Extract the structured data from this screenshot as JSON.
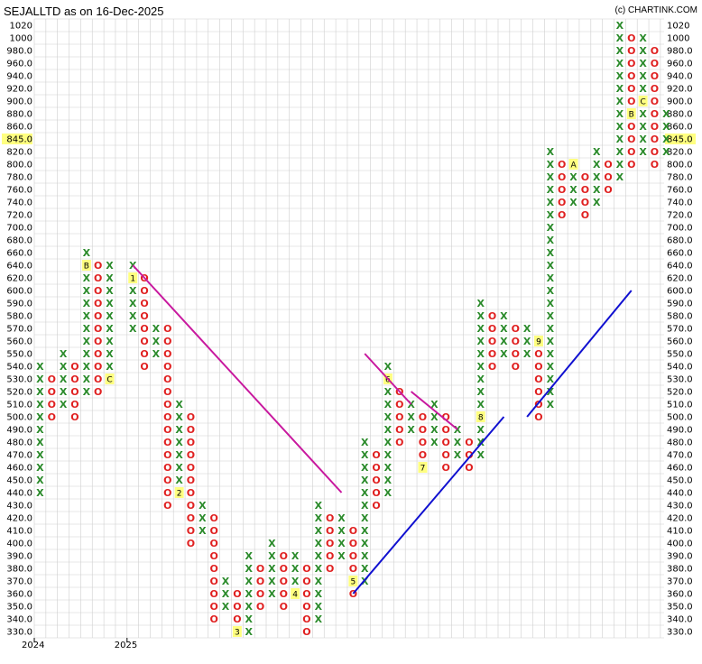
{
  "title": "SEJALLTD as on 16-Dec-2025",
  "credit": "(c) CHARTINK.COM",
  "current_price_label": "845.0",
  "colors": {
    "x": "#2a8a2a",
    "o": "#e02020",
    "downtrend": "#c8189e",
    "uptrend": "#1010d0",
    "grid": "#cfcfcf",
    "highlight": "#ffff80"
  },
  "chart_data": {
    "type": "point-and-figure",
    "symbol": "SEJALLTD",
    "y_ticks": [
      330,
      340,
      350,
      360,
      370,
      380,
      390,
      400,
      410,
      420,
      430,
      440,
      450,
      460,
      470,
      480,
      490,
      500,
      510,
      520,
      530,
      540,
      550,
      560,
      570,
      580,
      590,
      600,
      620,
      640,
      660,
      680,
      700,
      720,
      740,
      760,
      780,
      800,
      820,
      845,
      860,
      880,
      900,
      920,
      940,
      960,
      980,
      1000,
      1020
    ],
    "y_tick_labels": [
      "330.0",
      "340.0",
      "350.0",
      "360.0",
      "370.0",
      "380.0",
      "390.0",
      "400.0",
      "410.0",
      "420.0",
      "430.0",
      "440.0",
      "450.0",
      "460.0",
      "470.0",
      "480.0",
      "490.0",
      "500.0",
      "510.0",
      "520.0",
      "530.0",
      "540.0",
      "550.0",
      "560.0",
      "570.0",
      "580.0",
      "590.0",
      "600.0",
      "620.0",
      "640.0",
      "660.0",
      "680.0",
      "700.0",
      "720.0",
      "740.0",
      "760.0",
      "780.0",
      "800.0",
      "820.0",
      "845.0",
      "860.0",
      "880.0",
      "900.0",
      "920.0",
      "940.0",
      "960.0",
      "980.0",
      "1000",
      "1020"
    ],
    "x_year_labels": [
      {
        "label": "2024",
        "col": 0
      },
      {
        "label": "2025",
        "col": 8
      }
    ],
    "columns": [
      {
        "t": "X",
        "lo": 440,
        "hi": 540
      },
      {
        "t": "O",
        "lo": 500,
        "hi": 530
      },
      {
        "t": "X",
        "lo": 510,
        "hi": 550
      },
      {
        "t": "O",
        "lo": 500,
        "hi": 540
      },
      {
        "t": "X",
        "lo": 520,
        "hi": 660,
        "marks": {
          "640": "B"
        }
      },
      {
        "t": "O",
        "lo": 520,
        "hi": 640
      },
      {
        "t": "X",
        "lo": 530,
        "hi": 640,
        "marks": {
          "530": "C"
        }
      },
      {
        "t": "O",
        "lo": 560,
        "hi": 630
      },
      {
        "t": "X",
        "lo": 570,
        "hi": 640,
        "marks": {
          "620": "1"
        }
      },
      {
        "t": "O",
        "lo": 540,
        "hi": 620
      },
      {
        "t": "X",
        "lo": 550,
        "hi": 570
      },
      {
        "t": "O",
        "lo": 430,
        "hi": 570
      },
      {
        "t": "X",
        "lo": 440,
        "hi": 510,
        "marks": {
          "440": "2"
        }
      },
      {
        "t": "O",
        "lo": 400,
        "hi": 500
      },
      {
        "t": "X",
        "lo": 410,
        "hi": 430
      },
      {
        "t": "O",
        "lo": 340,
        "hi": 420
      },
      {
        "t": "X",
        "lo": 350,
        "hi": 370
      },
      {
        "t": "O",
        "lo": 340,
        "hi": 360,
        "marks": {
          "330": "3"
        }
      },
      {
        "t": "X",
        "lo": 330,
        "hi": 390
      },
      {
        "t": "O",
        "lo": 350,
        "hi": 380
      },
      {
        "t": "X",
        "lo": 360,
        "hi": 400
      },
      {
        "t": "O",
        "lo": 350,
        "hi": 390
      },
      {
        "t": "X",
        "lo": 360,
        "hi": 390,
        "marks": {
          "360": "4"
        }
      },
      {
        "t": "O",
        "lo": 330,
        "hi": 380
      },
      {
        "t": "X",
        "lo": 340,
        "hi": 430
      },
      {
        "t": "O",
        "lo": 380,
        "hi": 420
      },
      {
        "t": "X",
        "lo": 390,
        "hi": 420
      },
      {
        "t": "O",
        "lo": 360,
        "hi": 410,
        "marks": {
          "370": "5"
        }
      },
      {
        "t": "X",
        "lo": 370,
        "hi": 480
      },
      {
        "t": "O",
        "lo": 430,
        "hi": 470
      },
      {
        "t": "X",
        "lo": 440,
        "hi": 540,
        "marks": {
          "530": "6"
        }
      },
      {
        "t": "O",
        "lo": 480,
        "hi": 520
      },
      {
        "t": "X",
        "lo": 490,
        "hi": 510
      },
      {
        "t": "O",
        "lo": 470,
        "hi": 500,
        "marks": {
          "460": "7"
        }
      },
      {
        "t": "X",
        "lo": 480,
        "hi": 510
      },
      {
        "t": "O",
        "lo": 460,
        "hi": 500
      },
      {
        "t": "X",
        "lo": 470,
        "hi": 490
      },
      {
        "t": "O",
        "lo": 460,
        "hi": 480
      },
      {
        "t": "X",
        "lo": 470,
        "hi": 590,
        "marks": {
          "500": "8"
        }
      },
      {
        "t": "O",
        "lo": 540,
        "hi": 580
      },
      {
        "t": "X",
        "lo": 550,
        "hi": 580
      },
      {
        "t": "O",
        "lo": 540,
        "hi": 570
      },
      {
        "t": "X",
        "lo": 550,
        "hi": 570
      },
      {
        "t": "O",
        "lo": 500,
        "hi": 560,
        "marks": {
          "560": "9"
        }
      },
      {
        "t": "X",
        "lo": 510,
        "hi": 820
      },
      {
        "t": "O",
        "lo": 720,
        "hi": 800
      },
      {
        "t": "X",
        "lo": 740,
        "hi": 800,
        "marks": {
          "800": "A"
        }
      },
      {
        "t": "O",
        "lo": 720,
        "hi": 780
      },
      {
        "t": "X",
        "lo": 740,
        "hi": 820
      },
      {
        "t": "O",
        "lo": 760,
        "hi": 800
      },
      {
        "t": "X",
        "lo": 780,
        "hi": 1020
      },
      {
        "t": "O",
        "lo": 800,
        "hi": 1000,
        "marks": {
          "880": "B"
        }
      },
      {
        "t": "X",
        "lo": 820,
        "hi": 1000,
        "marks": {
          "900": "C"
        }
      },
      {
        "t": "O",
        "lo": 800,
        "hi": 980
      },
      {
        "t": "X",
        "lo": 820,
        "hi": 880
      }
    ],
    "trendlines": [
      {
        "kind": "downtrend",
        "from": {
          "col": 8,
          "price": 640
        },
        "to": {
          "col": 26,
          "price": 440
        }
      },
      {
        "kind": "downtrend",
        "from": {
          "col": 28,
          "price": 550
        },
        "to": {
          "col": 32,
          "price": 510
        }
      },
      {
        "kind": "downtrend",
        "from": {
          "col": 32,
          "price": 520
        },
        "to": {
          "col": 36,
          "price": 490
        }
      },
      {
        "kind": "uptrend",
        "from": {
          "col": 27,
          "price": 360
        },
        "to": {
          "col": 40,
          "price": 500
        }
      },
      {
        "kind": "uptrend",
        "from": {
          "col": 42,
          "price": 500
        },
        "to": {
          "col": 51,
          "price": 600
        }
      }
    ]
  }
}
